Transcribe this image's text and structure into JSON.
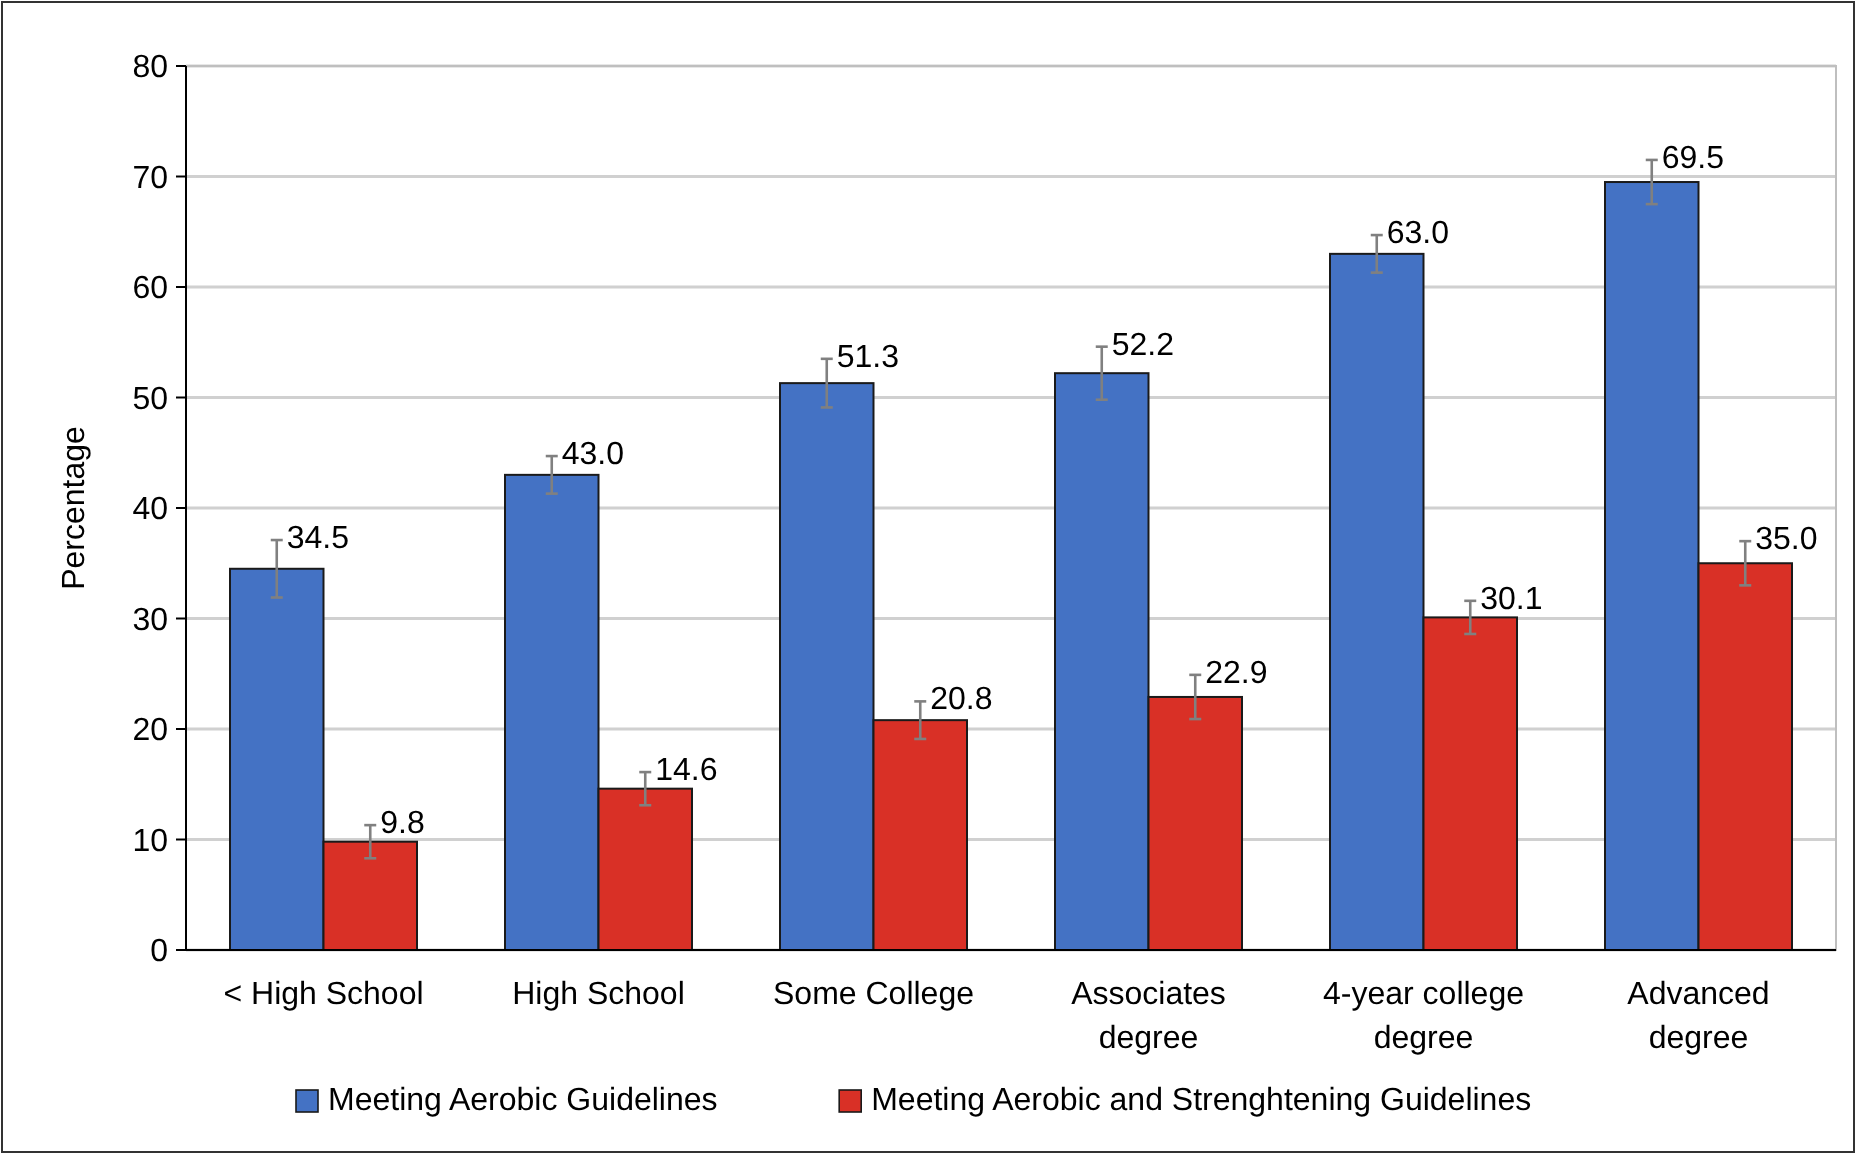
{
  "chart_data": {
    "type": "bar",
    "ylabel": "Percentage",
    "categories": [
      "< High School",
      "High School",
      "Some College",
      "Associates degree",
      "4-year college degree",
      "Advanced degree"
    ],
    "series": [
      {
        "name": "Meeting Aerobic Guidelines",
        "color": "#4472c4",
        "values": [
          34.5,
          43.0,
          51.3,
          52.2,
          63.0,
          69.5
        ],
        "value_labels": [
          "34.5",
          "43.0",
          "51.3",
          "52.2",
          "63.0",
          "69.5"
        ],
        "errors": [
          2.6,
          1.7,
          2.2,
          2.4,
          1.7,
          2.0
        ]
      },
      {
        "name": "Meeting Aerobic and Strenghtening Guidelines",
        "color": "#d93026",
        "values": [
          9.8,
          14.6,
          20.8,
          22.9,
          30.1,
          35.0
        ],
        "value_labels": [
          "9.8",
          "14.6",
          "20.8",
          "22.9",
          "30.1",
          "35.0"
        ],
        "errors": [
          1.5,
          1.5,
          1.7,
          2.0,
          1.5,
          2.0
        ]
      }
    ],
    "ylim": [
      0,
      80
    ],
    "yticks": [
      0,
      10,
      20,
      30,
      40,
      50,
      60,
      70,
      80
    ],
    "grid": "y",
    "legend": "bottom"
  }
}
